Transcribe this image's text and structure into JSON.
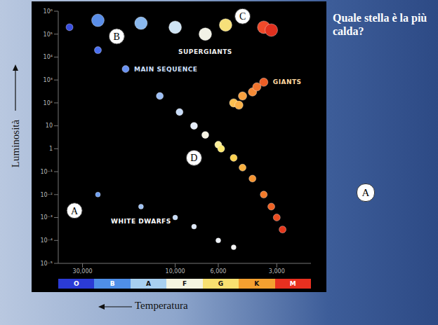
{
  "chart_data": {
    "type": "scatter",
    "title": "Quale stella è la più calda?",
    "x_label": "Temperatura",
    "y_label": "Luminosità",
    "log": true,
    "grid": false,
    "xlim": [
      40000,
      2000
    ],
    "xticks": [
      {
        "value": 30000,
        "label": "30,000"
      },
      {
        "value": 10000,
        "label": "10,000"
      },
      {
        "value": 6000,
        "label": "6,000"
      },
      {
        "value": 3000,
        "label": "3,000"
      }
    ],
    "ylim": [
      1e-05,
      1000000
    ],
    "yticks": [
      {
        "value": 1000000,
        "label": "10⁶"
      },
      {
        "value": 100000,
        "label": "10⁵"
      },
      {
        "value": 10000,
        "label": "10⁴"
      },
      {
        "value": 1000,
        "label": "10³"
      },
      {
        "value": 100,
        "label": "10²"
      },
      10,
      1,
      {
        "value": 0.1,
        "label": "10⁻¹"
      },
      {
        "value": 0.01,
        "label": "10⁻²"
      },
      {
        "value": 0.001,
        "label": "10⁻³"
      },
      {
        "value": 0.0001,
        "label": "10⁻⁴"
      },
      {
        "value": 1e-05,
        "label": "10⁻⁵"
      }
    ],
    "series": [
      {
        "name": "SUPERGIANTS",
        "x": [
          25000,
          15000,
          10000,
          7000,
          5500,
          3500,
          3200
        ],
        "values": [
          400000,
          300000,
          200000,
          100000,
          250000,
          200000,
          150000
        ],
        "colors": [
          "#5a8ee8",
          "#8ab8ee",
          "#cfe4f4",
          "#f2f2e6",
          "#f6e07a",
          "#f04a2a",
          "#e0301e"
        ]
      },
      {
        "name": "GIANTS",
        "x": [
          5000,
          4700,
          4500,
          4000,
          3800,
          3500
        ],
        "values": [
          100,
          80,
          200,
          300,
          500,
          800
        ],
        "colors": [
          "#fbbf50",
          "#f9b048",
          "#f7a040",
          "#f48a36",
          "#f0742e",
          "#ec5e26"
        ]
      },
      {
        "name": "MAIN SEQUENCE",
        "x": [
          35000,
          25000,
          18000,
          12000,
          9500,
          8000,
          7000,
          6000,
          5800,
          5000,
          4500,
          4000,
          3500,
          3200,
          3000,
          2800
        ],
        "values": [
          200000,
          20000,
          3000,
          200,
          40,
          10,
          4,
          1.5,
          1,
          0.4,
          0.15,
          0.05,
          0.01,
          0.003,
          0.001,
          0.0003
        ],
        "colors": [
          "#3a4fe0",
          "#4a6ff0",
          "#6a92f2",
          "#9cbef5",
          "#c8dcf8",
          "#e6eefa",
          "#f6f4e4",
          "#fbef9a",
          "#fde870",
          "#fcd050",
          "#f9b040",
          "#f59432",
          "#f27a2a",
          "#ee6224",
          "#ea4c20",
          "#e4381c"
        ]
      },
      {
        "name": "WHITE DWARFS",
        "x": [
          25000,
          15000,
          10000,
          8000,
          6000,
          5000
        ],
        "values": [
          0.01,
          0.003,
          0.001,
          0.0004,
          0.0001,
          5e-05
        ],
        "colors": [
          "#6f9ff0",
          "#9fc2f4",
          "#c6dbf7",
          "#dde8f8",
          "#eef2f8",
          "#f4f4f4"
        ]
      }
    ],
    "annotations": [
      {
        "text": "A",
        "x": 33000,
        "y": 0.002
      },
      {
        "text": "B",
        "x": 20000,
        "y": 80000
      },
      {
        "text": "C",
        "x": 4500,
        "y": 600000
      },
      {
        "text": "D",
        "x": 8000,
        "y": 0.4
      }
    ],
    "side_label": "A",
    "spectral_classes": {
      "labels": [
        "O",
        "B",
        "A",
        "F",
        "G",
        "K",
        "M"
      ],
      "colors": [
        "#2b3bd6",
        "#4f8fe8",
        "#a8d0f0",
        "#f4f4e0",
        "#f8e070",
        "#f4a030",
        "#e83020"
      ]
    }
  }
}
